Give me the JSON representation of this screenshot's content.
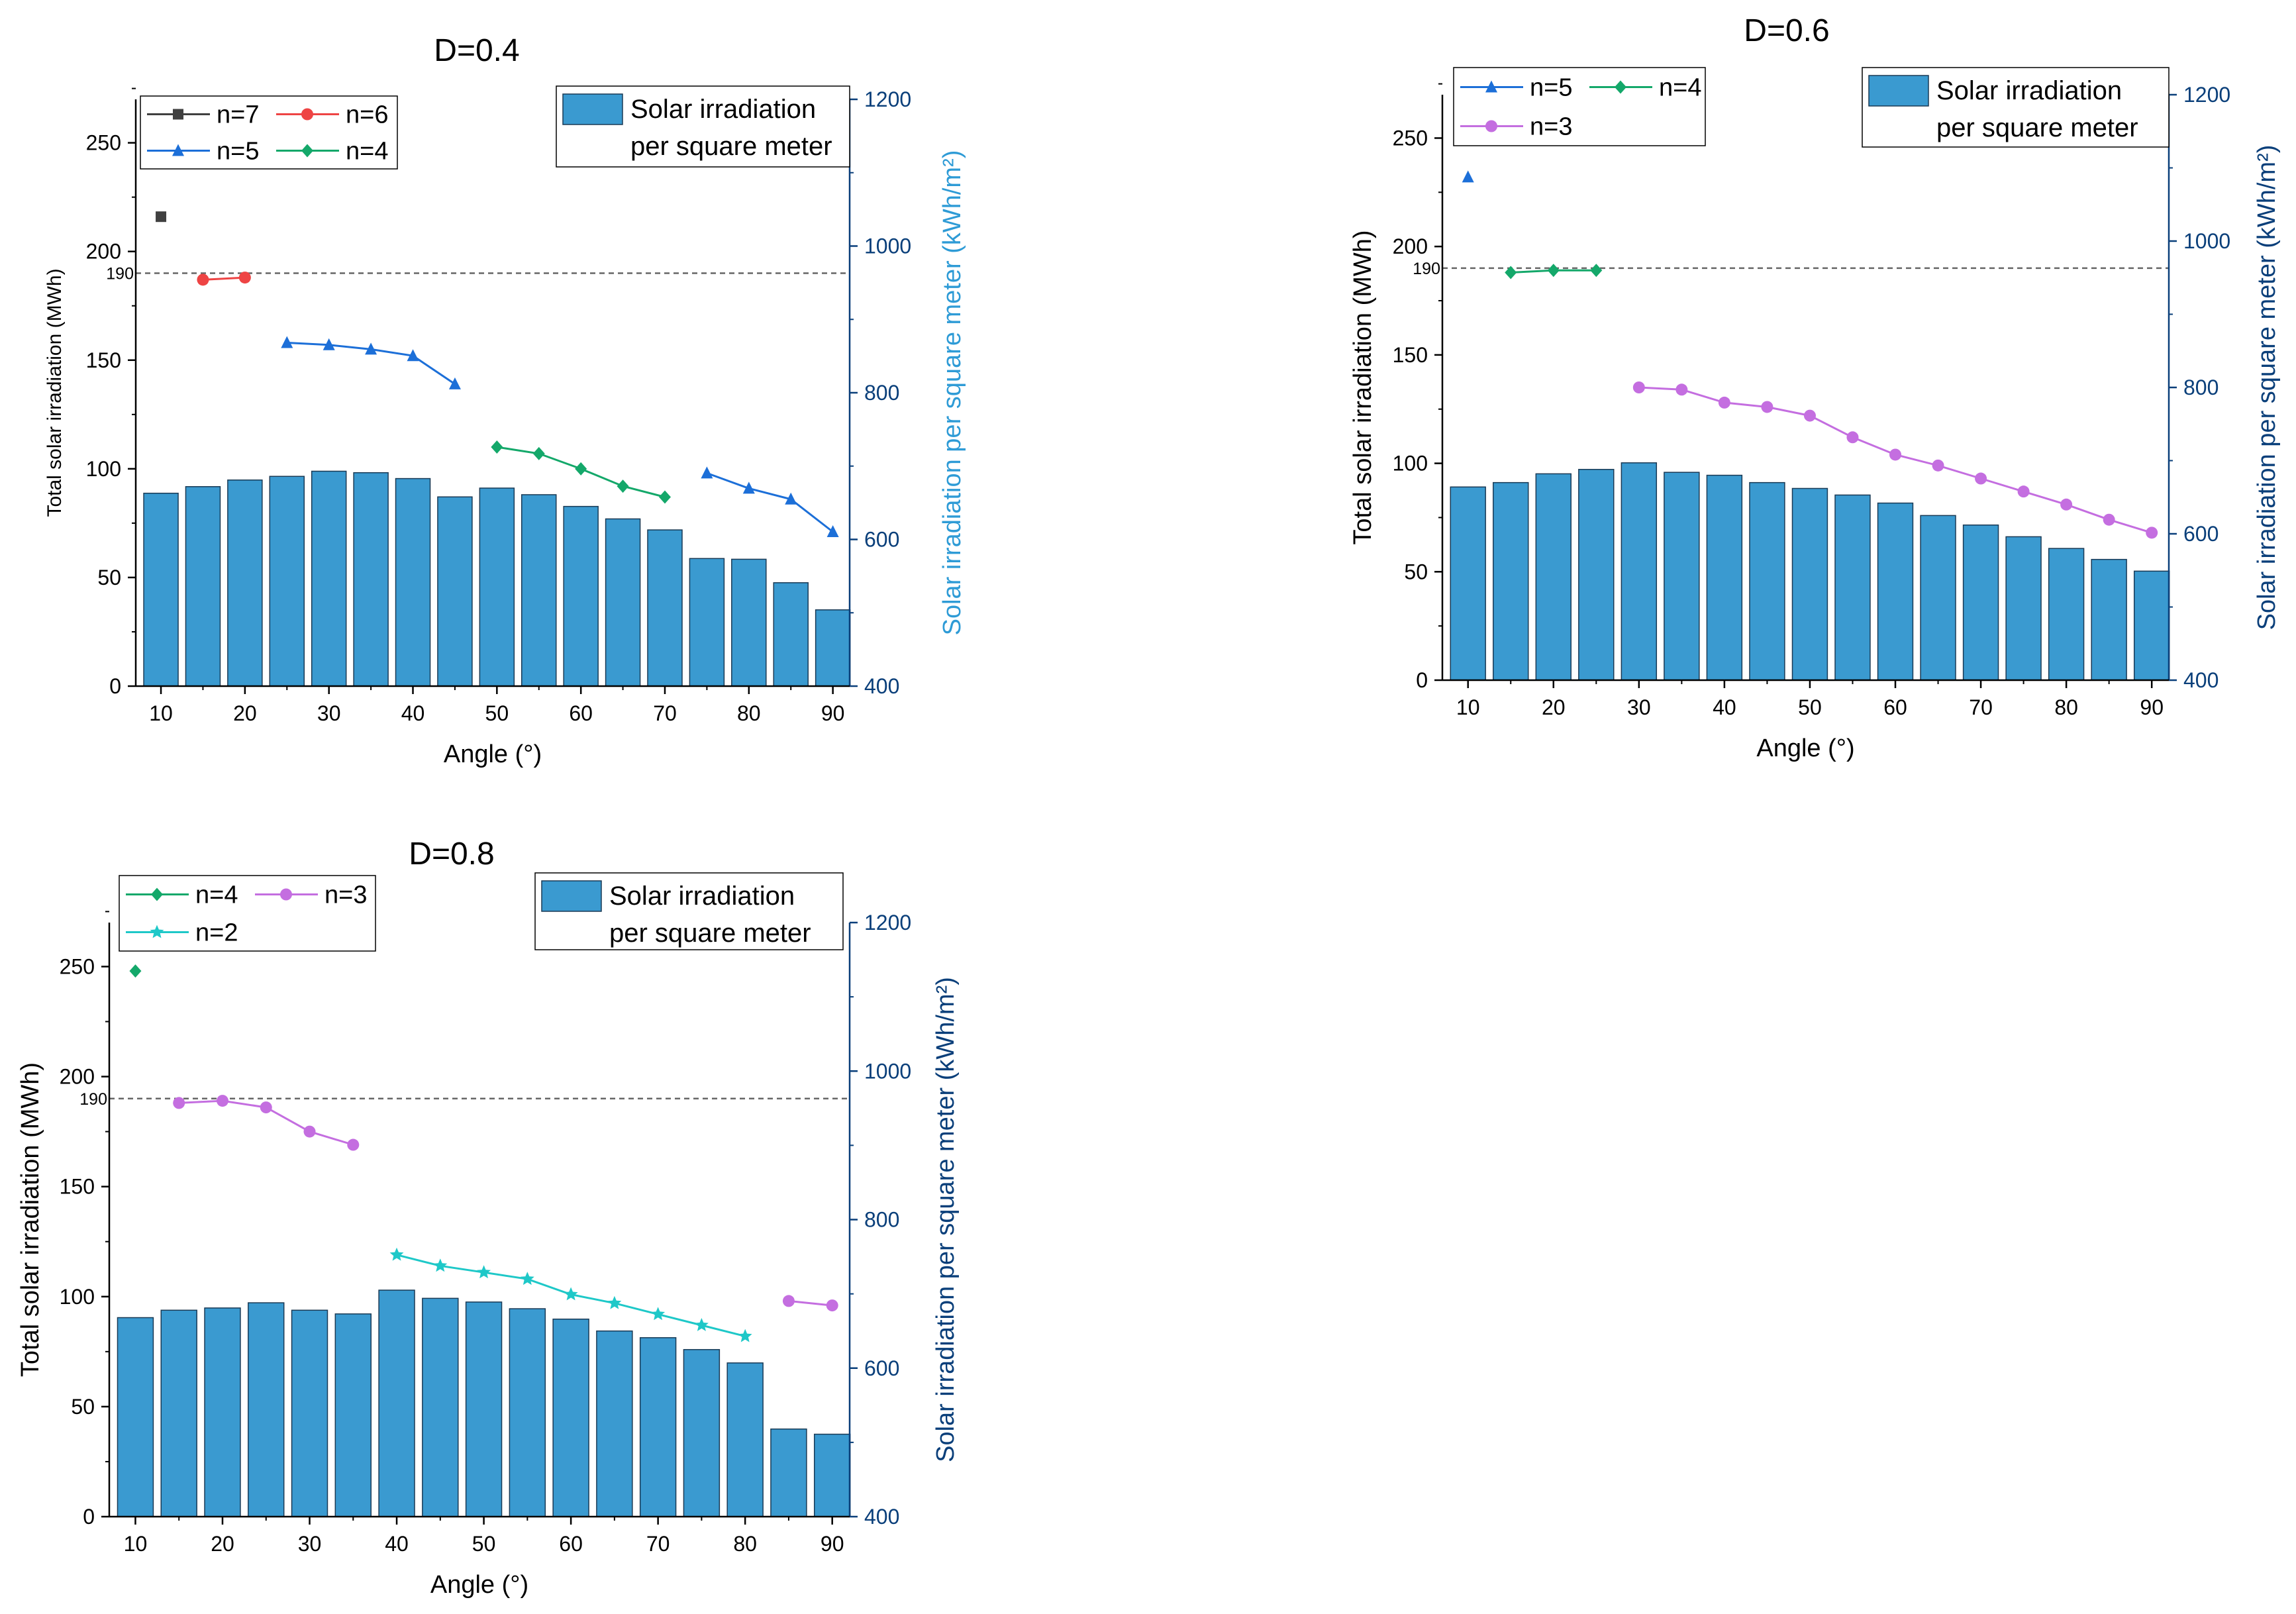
{
  "chart_data": [
    {
      "type": "bar+line",
      "title": "D=0.4",
      "xlabel": "Angle (°)",
      "ylabel": "Total solar irradiation (MWh)",
      "y2label": "Solar irradiation per square meter (kWh/m²)",
      "xlim": [
        7,
        92
      ],
      "ylim": [
        0,
        270
      ],
      "y2lim": [
        400,
        1200
      ],
      "xticks": [
        10,
        20,
        30,
        40,
        50,
        60,
        70,
        80,
        90
      ],
      "yticks": [
        0,
        50,
        100,
        150,
        200,
        250
      ],
      "y2ticks": [
        400,
        600,
        800,
        1000,
        1200
      ],
      "refline": {
        "value": 190,
        "label": "190"
      },
      "bars": {
        "name": "Solar irradiation per square meter",
        "x": [
          10,
          15,
          20,
          25,
          30,
          35,
          40,
          45,
          50,
          55,
          60,
          65,
          70,
          75,
          80,
          85,
          90
        ],
        "values": [
          663,
          672,
          681,
          686,
          693,
          691,
          683,
          658,
          670,
          661,
          645,
          628,
          613,
          574,
          573,
          541,
          504
        ]
      },
      "series": [
        {
          "name": "n=7",
          "color": "#404040",
          "marker": "square",
          "x": [
            10
          ],
          "y": [
            216
          ]
        },
        {
          "name": "n=6",
          "color": "#ee4444",
          "marker": "circle",
          "x": [
            15,
            20
          ],
          "y": [
            187,
            188
          ]
        },
        {
          "name": "n=5",
          "color": "#1c6fd8",
          "marker": "triangle",
          "x": [
            25,
            30,
            35,
            40,
            45
          ],
          "y": [
            158,
            157,
            155,
            152,
            139
          ]
        },
        {
          "name": "n=4",
          "color": "#14a86a",
          "marker": "diamond",
          "x": [
            50,
            55,
            60,
            65,
            70
          ],
          "y": [
            110,
            107,
            100,
            92,
            87
          ]
        },
        {
          "name": "n=5",
          "color": "#1c6fd8",
          "marker": "triangle",
          "x": [
            75,
            80,
            85,
            90
          ],
          "y": [
            98,
            91,
            86,
            71
          ],
          "show_in_legend": false
        }
      ],
      "legend": [
        [
          "n=7",
          "n=6"
        ],
        [
          "n=5",
          "n=4"
        ]
      ],
      "bar_legend": [
        "Solar irradiation",
        "per square meter"
      ]
    },
    {
      "type": "bar+line",
      "title": "D=0.6",
      "xlabel": "Angle (°)",
      "ylabel": "Total solar irradiation (MWh)",
      "y2label": "Solar irradiation  per square meter (kWh/m²)",
      "xlim": [
        7,
        92
      ],
      "ylim": [
        0,
        270
      ],
      "y2lim": [
        400,
        1200
      ],
      "xticks": [
        10,
        20,
        30,
        40,
        50,
        60,
        70,
        80,
        90
      ],
      "yticks": [
        0,
        50,
        100,
        150,
        200,
        250
      ],
      "y2ticks": [
        400,
        600,
        800,
        1000,
        1200
      ],
      "refline": {
        "value": 190,
        "label": "190"
      },
      "bars": {
        "name": "Solar irradiation per square meter",
        "x": [
          10,
          15,
          20,
          25,
          30,
          35,
          40,
          45,
          50,
          55,
          60,
          65,
          70,
          75,
          80,
          85,
          90
        ],
        "values": [
          664,
          670,
          682,
          688,
          697,
          684,
          680,
          670,
          662,
          653,
          642,
          625,
          612,
          596,
          580,
          565,
          549
        ]
      },
      "series": [
        {
          "name": "n=5",
          "color": "#1c6fd8",
          "marker": "triangle",
          "x": [
            10
          ],
          "y": [
            232
          ]
        },
        {
          "name": "n=4",
          "color": "#14a86a",
          "marker": "diamond",
          "x": [
            15,
            20,
            25
          ],
          "y": [
            188,
            189,
            189
          ]
        },
        {
          "name": "n=3",
          "color": "#c46ee0",
          "marker": "circle",
          "x": [
            30,
            35,
            40,
            45,
            50,
            55,
            60,
            65,
            70,
            75,
            80,
            85,
            90
          ],
          "y": [
            135,
            134,
            128,
            126,
            122,
            112,
            104,
            99,
            93,
            87,
            81,
            74,
            68
          ]
        }
      ],
      "legend": [
        [
          "n=5",
          "n=4"
        ],
        [
          "n=3"
        ]
      ],
      "bar_legend": [
        "Solar irradiation",
        "per square meter"
      ]
    },
    {
      "type": "bar+line",
      "title": "D=0.8",
      "xlabel": "Angle (°)",
      "ylabel": "Total solar irradiation (MWh)",
      "y2label": "Solar irradiation  per square meter (kWh/m²)",
      "xlim": [
        7,
        92
      ],
      "ylim": [
        0,
        270
      ],
      "y2lim": [
        400,
        1200
      ],
      "xticks": [
        10,
        20,
        30,
        40,
        50,
        60,
        70,
        80,
        90
      ],
      "yticks": [
        0,
        50,
        100,
        150,
        200,
        250
      ],
      "y2ticks": [
        400,
        600,
        800,
        1000,
        1200
      ],
      "refline": {
        "value": 190,
        "label": "190"
      },
      "bars": {
        "name": "Solar irradiation per square meter",
        "x": [
          10,
          15,
          20,
          25,
          30,
          35,
          40,
          45,
          50,
          55,
          60,
          65,
          70,
          75,
          80,
          85,
          90
        ],
        "values": [
          668,
          678,
          681,
          688,
          678,
          673,
          705,
          694,
          689,
          680,
          666,
          650,
          641,
          625,
          607,
          518,
          511
        ]
      },
      "series": [
        {
          "name": "n=4",
          "color": "#14a86a",
          "marker": "diamond",
          "x": [
            10
          ],
          "y": [
            248
          ]
        },
        {
          "name": "n=3",
          "color": "#c46ee0",
          "marker": "circle",
          "x": [
            15,
            20,
            25,
            30,
            35
          ],
          "y": [
            188,
            189,
            186,
            175,
            169
          ]
        },
        {
          "name": "n=2",
          "color": "#1ec8c8",
          "marker": "star",
          "x": [
            40,
            45,
            50,
            55,
            60,
            65,
            70,
            75,
            80
          ],
          "y": [
            119,
            114,
            111,
            108,
            101,
            97,
            92,
            87,
            82
          ]
        },
        {
          "name": "n=3",
          "color": "#c46ee0",
          "marker": "circle",
          "x": [
            85,
            90
          ],
          "y": [
            98,
            96
          ],
          "show_in_legend": false
        }
      ],
      "legend": [
        [
          "n=4",
          "n=3"
        ],
        [
          "n=2"
        ]
      ],
      "bar_legend": [
        "Solar irradiation",
        "per square meter"
      ]
    }
  ],
  "colors": {
    "bar_fill": "#3a9ad0",
    "bar_stroke": "#1a3a55",
    "axis": "#000000",
    "right_axis": "#0a3f7a",
    "refline": "#666666"
  }
}
